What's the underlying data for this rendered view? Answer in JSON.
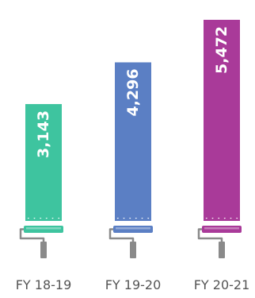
{
  "chart_data": {
    "type": "bar",
    "categories": [
      "FY 18-19",
      "FY 19-20",
      "FY 20-21"
    ],
    "values": [
      3143,
      4296,
      5472
    ],
    "value_labels": [
      "3,143",
      "4,296",
      "5,472"
    ],
    "ylim": [
      0,
      5800
    ],
    "grid": false,
    "colors": [
      "#3ec49f",
      "#5b7fc4",
      "#a93a99"
    ],
    "title": "",
    "xlabel": "",
    "ylabel": ""
  },
  "icons": {
    "bar_base": "paint-roller-icon",
    "roller_handle": "#8a8a8a"
  }
}
